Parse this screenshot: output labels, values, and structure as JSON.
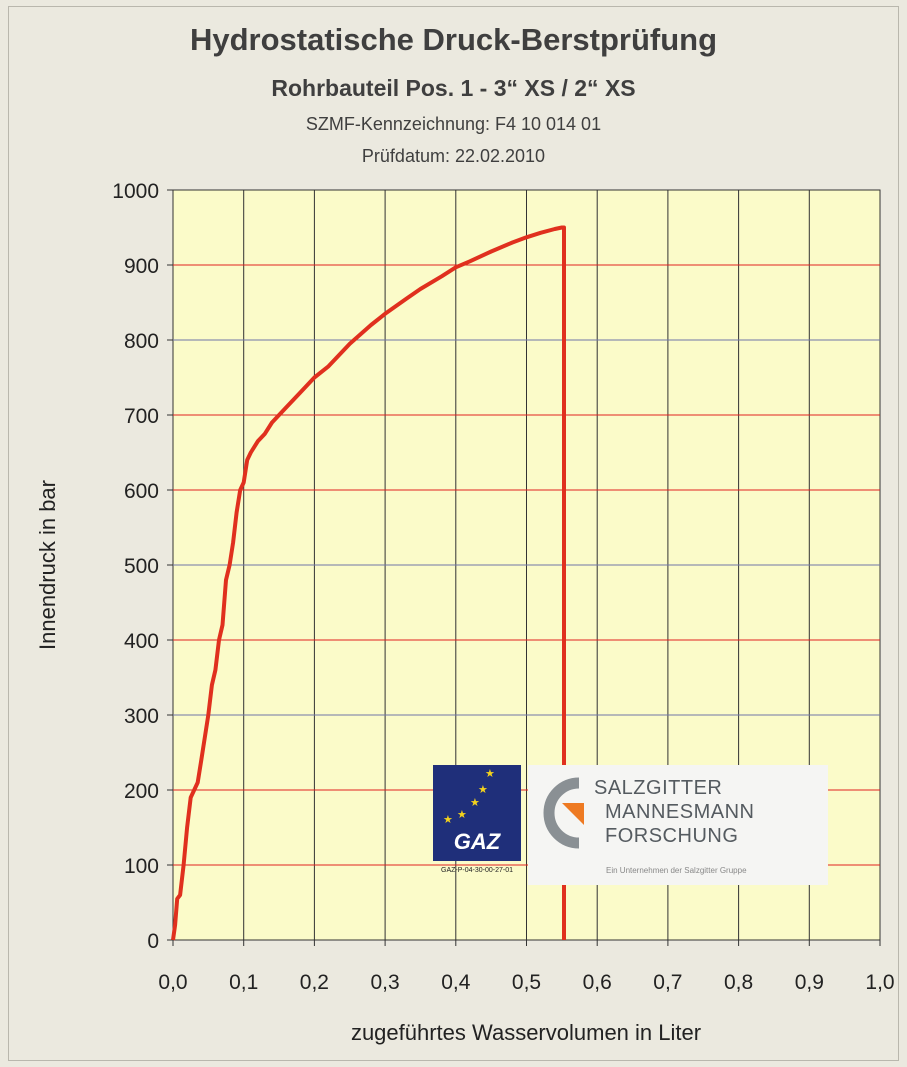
{
  "header": {
    "title": "Hydrostatische Druck-Berstprüfung",
    "subtitle": "Rohrbauteil Pos. 1 - 3“ XS / 2“ XS",
    "marking": "SZMF-Kennzeichnung: F4 10 014 01",
    "date": "Prüfdatum: 22.02.2010"
  },
  "logos": {
    "gaz": {
      "text": "GAZ",
      "registration": "GAZ-P-04-30-00-27-01"
    },
    "smf": {
      "line1": "SALZGITTER",
      "line2": "MANNESMANN",
      "line3": "FORSCHUNG",
      "tagline": "Ein Unternehmen der Salzgitter Gruppe"
    }
  },
  "colors": {
    "series": "#e0301e",
    "major_grid": "#333333",
    "red_grid": "#e02020",
    "blue_grid": "#6f75a8",
    "plot_bg": "#fbfbc9"
  },
  "chart_data": {
    "type": "line",
    "xlabel": "zugeführtes Wasservolumen in Liter",
    "ylabel": "Innendruck in bar",
    "xlim": [
      0,
      1
    ],
    "ylim": [
      0,
      1000
    ],
    "x_ticks": [
      "0,0",
      "0,1",
      "0,2",
      "0,3",
      "0,4",
      "0,5",
      "0,6",
      "0,7",
      "0,8",
      "0,9",
      "1,0"
    ],
    "y_ticks": [
      "0",
      "100",
      "200",
      "300",
      "400",
      "500",
      "600",
      "700",
      "800",
      "900",
      "1000"
    ],
    "grid": true,
    "series": [
      {
        "x": [
          0.0,
          0.003,
          0.006,
          0.01,
          0.015,
          0.02,
          0.025,
          0.03,
          0.035,
          0.04,
          0.045,
          0.05,
          0.055,
          0.06,
          0.065,
          0.07,
          0.075,
          0.08,
          0.085,
          0.09,
          0.095,
          0.1,
          0.105,
          0.11,
          0.12,
          0.13,
          0.14,
          0.16,
          0.18,
          0.2,
          0.22,
          0.25,
          0.28,
          0.3,
          0.33,
          0.35,
          0.38,
          0.4,
          0.42,
          0.45,
          0.48,
          0.5,
          0.52,
          0.54,
          0.55,
          0.553,
          0.553
        ],
        "y": [
          0,
          20,
          55,
          60,
          100,
          150,
          190,
          200,
          210,
          240,
          270,
          300,
          340,
          360,
          400,
          420,
          480,
          500,
          530,
          570,
          600,
          610,
          640,
          650,
          665,
          675,
          690,
          710,
          730,
          750,
          765,
          795,
          820,
          835,
          855,
          868,
          885,
          897,
          905,
          918,
          930,
          937,
          943,
          948,
          950,
          950,
          0
        ]
      }
    ]
  }
}
